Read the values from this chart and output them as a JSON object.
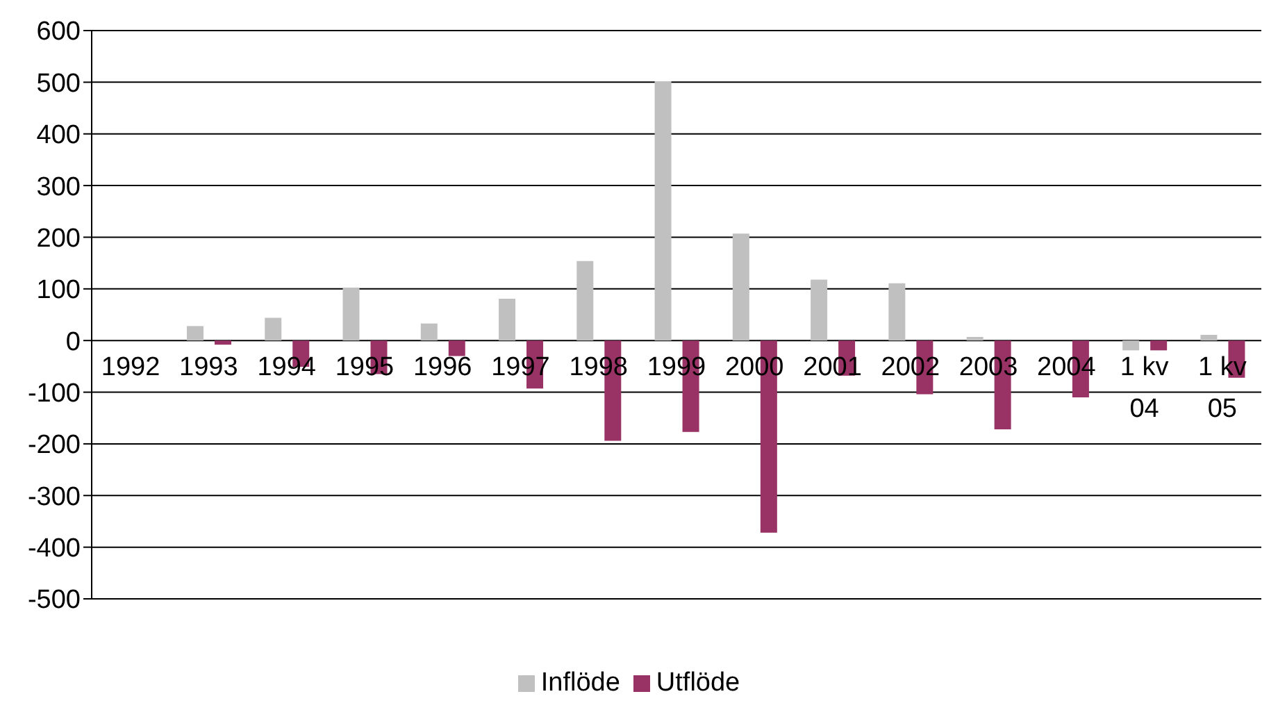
{
  "chart_data": {
    "type": "bar",
    "categories": [
      "1992",
      "1993",
      "1994",
      "1995",
      "1996",
      "1997",
      "1998",
      "1999",
      "2000",
      "2001",
      "2002",
      "2003",
      "2004",
      "1 kv 04",
      "1 kv 05"
    ],
    "series": [
      {
        "name": "Inflöde",
        "color": "#c0c0c0",
        "values": [
          0,
          28,
          44,
          102,
          33,
          81,
          154,
          502,
          207,
          118,
          111,
          7,
          0,
          -19,
          11
        ]
      },
      {
        "name": "Utflöde",
        "color": "#993366",
        "values": [
          0,
          -8,
          -51,
          -65,
          -30,
          -93,
          -194,
          -177,
          -372,
          -68,
          -104,
          -172,
          -110,
          -19,
          -72
        ]
      }
    ],
    "ylim": [
      -500,
      600
    ],
    "yticks": [
      -500,
      -400,
      -300,
      -200,
      -100,
      0,
      100,
      200,
      300,
      400,
      500,
      600
    ],
    "grid": "y",
    "legend": "bottom"
  }
}
